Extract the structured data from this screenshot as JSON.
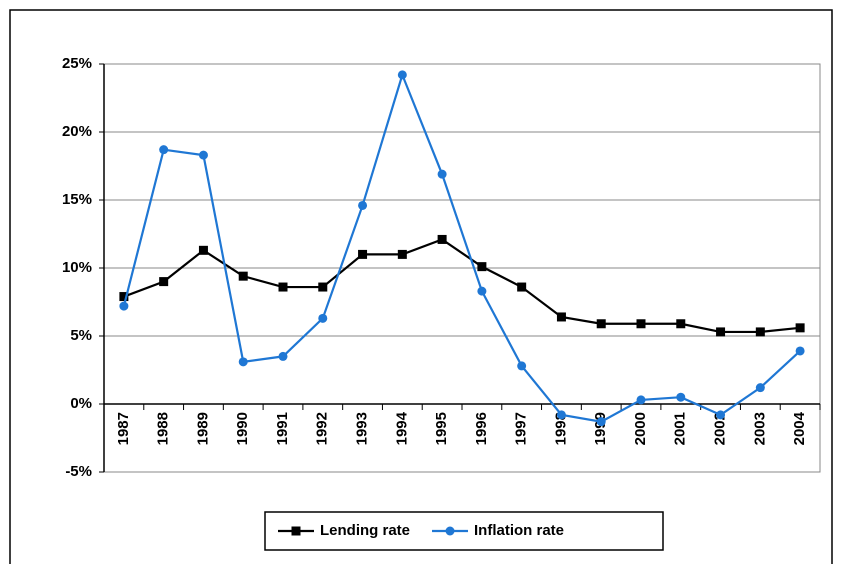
{
  "chart_data": {
    "type": "line",
    "categories": [
      "1987",
      "1988",
      "1989",
      "1990",
      "1991",
      "1992",
      "1993",
      "1994",
      "1995",
      "1996",
      "1997",
      "1998",
      "1999",
      "2000",
      "2001",
      "2002",
      "2003",
      "2004"
    ],
    "series": [
      {
        "name": "Lending rate",
        "color": "#000000",
        "marker": "square",
        "values": [
          7.9,
          9.0,
          11.3,
          9.4,
          8.6,
          8.6,
          11.0,
          11.0,
          12.1,
          10.1,
          8.6,
          6.4,
          5.9,
          5.9,
          5.9,
          5.3,
          5.3,
          5.6
        ]
      },
      {
        "name": "Inflation rate",
        "color": "#1f77d4",
        "marker": "circle",
        "values": [
          7.2,
          18.7,
          18.3,
          3.1,
          3.5,
          6.3,
          14.6,
          24.2,
          16.9,
          8.3,
          2.8,
          -0.8,
          -1.3,
          0.3,
          0.5,
          -0.8,
          1.2,
          3.9
        ]
      }
    ],
    "ylim": [
      -5,
      25
    ],
    "yticks": [
      {
        "value": -5,
        "label": "-5%"
      },
      {
        "value": 0,
        "label": "0%"
      },
      {
        "value": 5,
        "label": "5%"
      },
      {
        "value": 10,
        "label": "10%"
      },
      {
        "value": 15,
        "label": "15%"
      },
      {
        "value": 20,
        "label": "20%"
      },
      {
        "value": 25,
        "label": "25%"
      }
    ],
    "grid": true,
    "legend": "bottom"
  }
}
